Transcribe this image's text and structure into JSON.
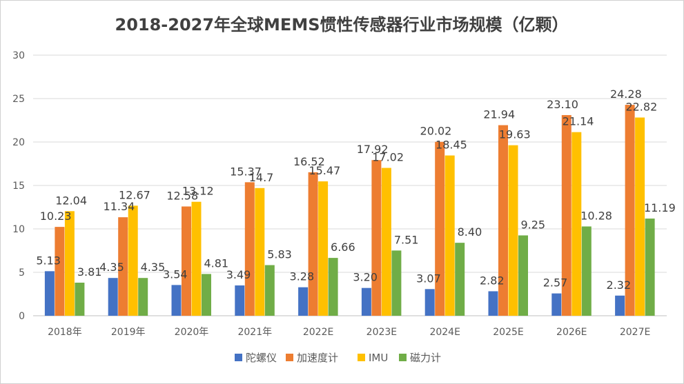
{
  "chart_data": {
    "type": "bar",
    "title": "2018-2027年全球MEMS惯性传感器行业市场规模（亿颗）",
    "xlabel": "",
    "ylabel": "",
    "ylim": [
      0,
      30
    ],
    "yticks": [
      0,
      5,
      10,
      15,
      20,
      25,
      30
    ],
    "grid": true,
    "legend_position": "bottom",
    "categories": [
      "2018年",
      "2019年",
      "2020年",
      "2021年",
      "2022E",
      "2023E",
      "2024E",
      "2025E",
      "2026E",
      "2027E"
    ],
    "series": [
      {
        "name": "陀螺仪",
        "color": "#4472C4",
        "values": [
          5.13,
          4.35,
          3.54,
          3.49,
          3.28,
          3.2,
          3.07,
          2.82,
          2.57,
          2.32
        ],
        "labels": [
          "5.13",
          "4.35",
          "3.54",
          "3.49",
          "3.28",
          "3.20",
          "3.07",
          "2.82",
          "2.57",
          "2.32"
        ]
      },
      {
        "name": "加速度计",
        "color": "#ED7D31",
        "values": [
          10.23,
          11.34,
          12.58,
          15.37,
          16.52,
          17.92,
          20.02,
          21.94,
          23.1,
          24.28
        ],
        "labels": [
          "10.23",
          "11.34",
          "12.58",
          "15.37",
          "16.52",
          "17.92",
          "20.02",
          "21.94",
          "23.10",
          "24.28"
        ]
      },
      {
        "name": "IMU",
        "color": "#FFC000",
        "values": [
          12.04,
          12.67,
          13.12,
          14.7,
          15.47,
          17.02,
          18.45,
          19.63,
          21.14,
          22.82
        ],
        "labels": [
          "12.04",
          "12.67",
          "13.12",
          "14.7",
          "15.47",
          "17.02",
          "18.45",
          "19.63",
          "21.14",
          "22.82"
        ]
      },
      {
        "name": "磁力计",
        "color": "#70AD47",
        "values": [
          3.81,
          4.35,
          4.81,
          5.83,
          6.66,
          7.51,
          8.4,
          9.25,
          10.28,
          11.19
        ],
        "labels": [
          "3.81",
          "4.35",
          "4.81",
          "5.83",
          "6.66",
          "7.51",
          "8.40",
          "9.25",
          "10.28",
          "11.19"
        ]
      }
    ]
  }
}
